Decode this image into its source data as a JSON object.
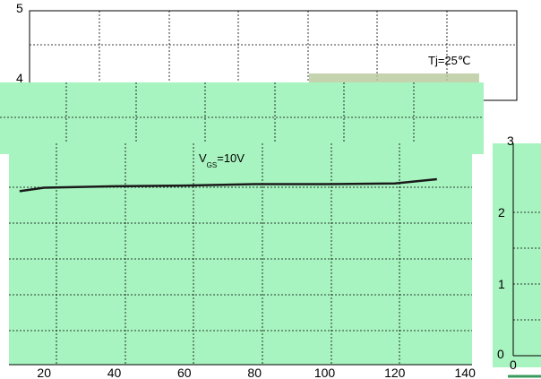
{
  "chart_data": [
    {
      "type": "line",
      "layer": "background",
      "annotation": "Tj=25℃",
      "y_ticks": [
        "5",
        "4"
      ],
      "grid": true
    },
    {
      "type": "line",
      "layer": "foreground",
      "annotation": {
        "main": "V",
        "subscript": "GS",
        "rest": "=10V"
      },
      "x_ticks": [
        "20",
        "40",
        "60",
        "80",
        "100",
        "120",
        "140"
      ],
      "xlim": [
        10,
        142
      ],
      "ylim": [
        0,
        5
      ],
      "grid": true,
      "series": [
        {
          "x": [
            13,
            20,
            40,
            60,
            80,
            100,
            120,
            132
          ],
          "y": [
            2.45,
            2.5,
            2.52,
            2.53,
            2.55,
            2.55,
            2.56,
            2.62
          ]
        }
      ]
    },
    {
      "type": "line",
      "layer": "right-panel",
      "y_ticks": [
        "3",
        "2",
        "1",
        "0"
      ],
      "x_ticks": [
        "0"
      ],
      "grid": true
    }
  ],
  "colors": {
    "panel_fill": "#a8f4c0",
    "plot_fill": "#a8f4c0",
    "line": "#1a1a1a",
    "grid": "#000000"
  }
}
